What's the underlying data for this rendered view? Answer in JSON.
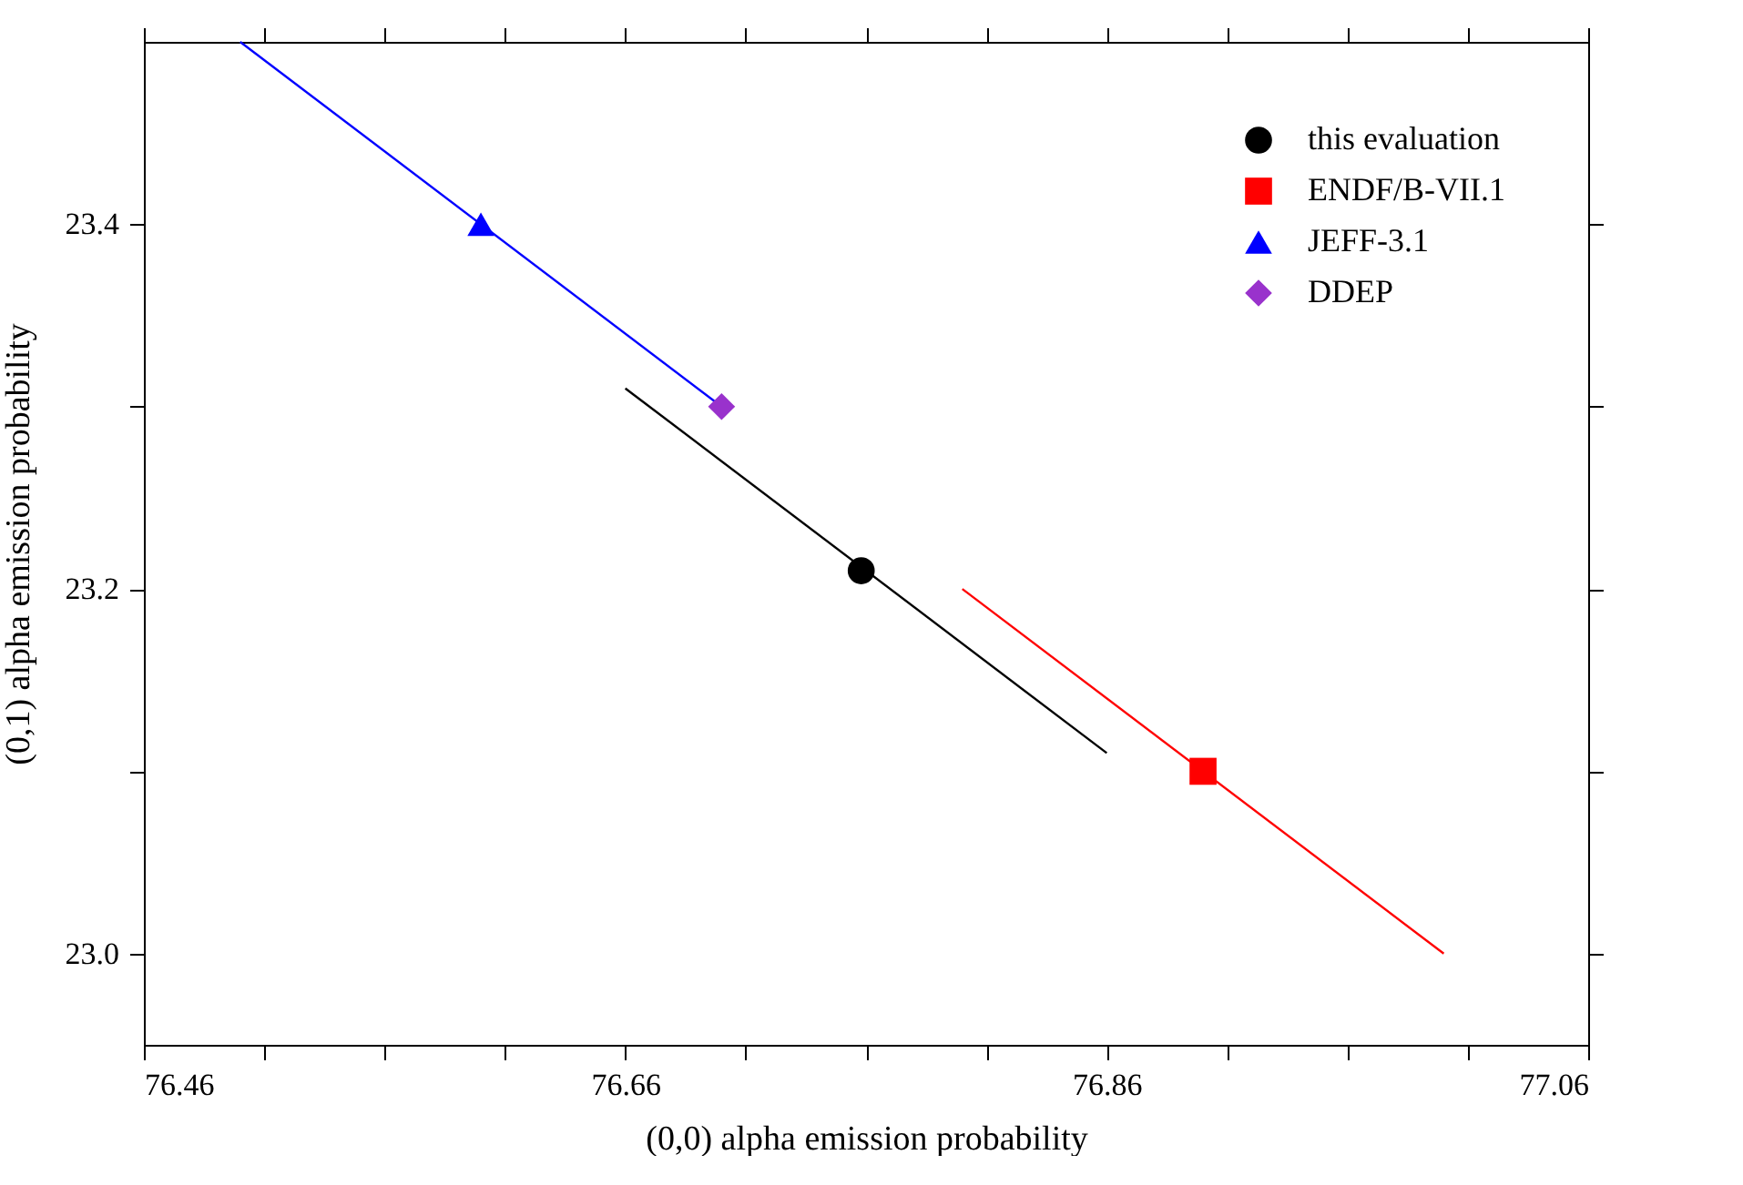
{
  "chart_data": {
    "type": "scatter",
    "xlabel": "(0,0) alpha emission probability",
    "ylabel": "(0,1) alpha emission probability",
    "xlim": [
      76.46,
      77.06
    ],
    "ylim": [
      22.95,
      23.5
    ],
    "xticks": [
      76.46,
      {
        "value": 76.51,
        "label": null
      },
      {
        "value": 76.56,
        "label": null
      },
      {
        "value": 76.61,
        "label": null
      },
      76.66,
      {
        "value": 76.71,
        "label": null
      },
      {
        "value": 76.76,
        "label": null
      },
      {
        "value": 76.81,
        "label": null
      },
      76.86,
      {
        "value": 76.91,
        "label": null
      },
      {
        "value": 76.96,
        "label": null
      },
      {
        "value": 77.01,
        "label": null
      },
      77.06
    ],
    "yticks": [
      {
        "value": 23.0,
        "label": "23.0"
      },
      {
        "value": 23.1,
        "label": null
      },
      {
        "value": 23.2,
        "label": "23.2"
      },
      {
        "value": 23.3,
        "label": null
      },
      {
        "value": 23.4,
        "label": "23.4"
      }
    ],
    "grid": false,
    "legend": "top right",
    "series": [
      {
        "type": "line",
        "color": "#0000ff",
        "x": [
          76.5,
          76.7
        ],
        "values": [
          23.5,
          23.3
        ]
      },
      {
        "type": "line",
        "color": "#000000",
        "x": [
          76.66,
          76.86
        ],
        "values": [
          23.31,
          23.11
        ]
      },
      {
        "type": "line",
        "color": "#ff0000",
        "x": [
          76.8,
          77.0
        ],
        "values": [
          23.2,
          23.0
        ]
      },
      {
        "name": "this evaluation",
        "color": "#000000",
        "marker": "circle",
        "x": [
          76.758
        ],
        "values": [
          23.21
        ]
      },
      {
        "name": "ENDF/B-VII.1",
        "color": "#ff0000",
        "marker": "square",
        "x": [
          76.9
        ],
        "values": [
          23.1
        ]
      },
      {
        "name": "JEFF-3.1",
        "color": "#0000ff",
        "marker": "triangle",
        "x": [
          76.6
        ],
        "values": [
          23.4
        ]
      },
      {
        "name": "DDEP",
        "color": "#9932cc",
        "marker": "diamond",
        "x": [
          76.7
        ],
        "values": [
          23.3
        ]
      }
    ]
  }
}
